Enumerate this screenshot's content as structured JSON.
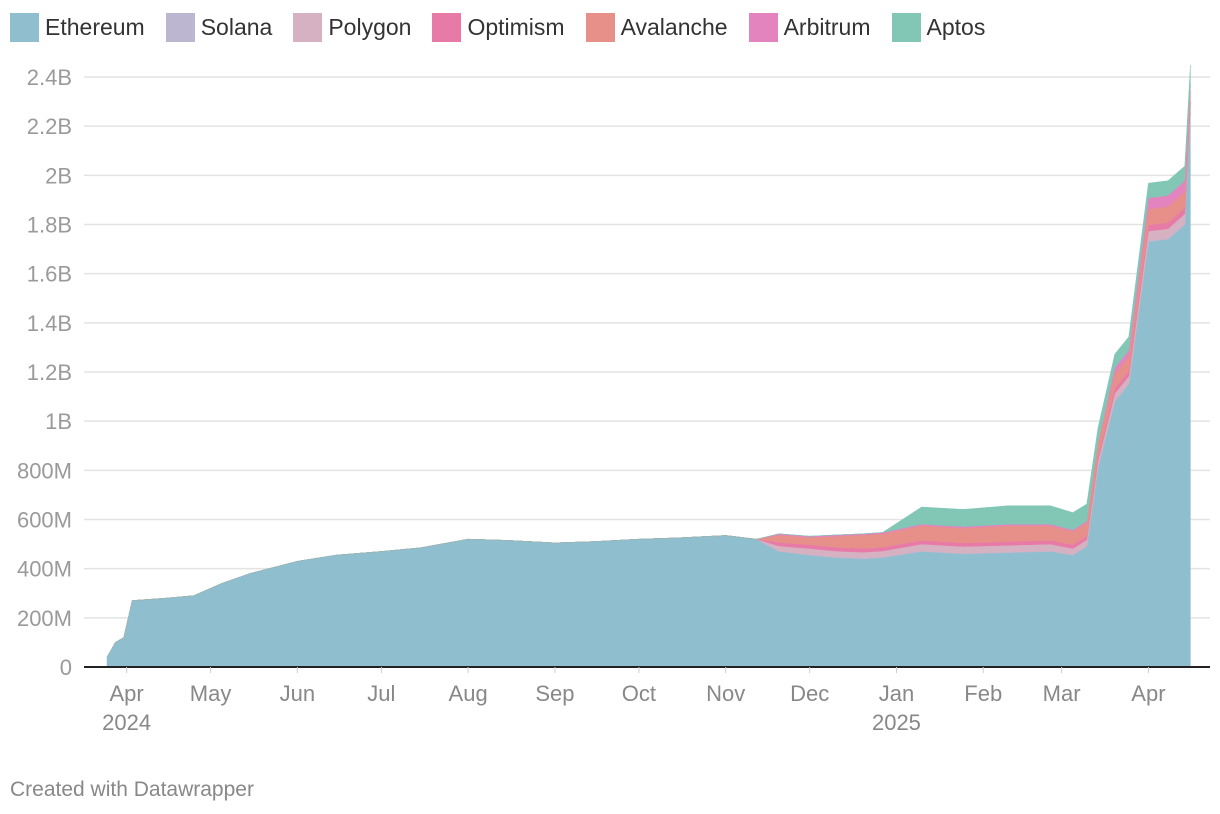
{
  "legend": {
    "items": [
      {
        "label": "Ethereum",
        "color": "#8fbfcf"
      },
      {
        "label": "Solana",
        "color": "#bcb6d0"
      },
      {
        "label": "Polygon",
        "color": "#d6b1c1"
      },
      {
        "label": "Optimism",
        "color": "#e87aa8"
      },
      {
        "label": "Avalanche",
        "color": "#e69089"
      },
      {
        "label": "Arbitrum",
        "color": "#e484be"
      },
      {
        "label": "Aptos",
        "color": "#82c6b6"
      }
    ]
  },
  "footer": {
    "credit": "Created with Datawrapper"
  },
  "chart_data": {
    "type": "area",
    "stacked": true,
    "title": "",
    "xlabel": "",
    "ylabel": "",
    "ylim": [
      0,
      2400000000
    ],
    "xlim": [
      "2024-03-20",
      "2025-04-18"
    ],
    "grid": true,
    "legend_position": "top-left",
    "y_ticks": [
      {
        "value": 0,
        "label": "0"
      },
      {
        "value": 200000000,
        "label": "200M"
      },
      {
        "value": 400000000,
        "label": "400M"
      },
      {
        "value": 600000000,
        "label": "600M"
      },
      {
        "value": 800000000,
        "label": "800M"
      },
      {
        "value": 1000000000,
        "label": "1B"
      },
      {
        "value": 1200000000,
        "label": "1.2B"
      },
      {
        "value": 1400000000,
        "label": "1.4B"
      },
      {
        "value": 1600000000,
        "label": "1.6B"
      },
      {
        "value": 1800000000,
        "label": "1.8B"
      },
      {
        "value": 2000000000,
        "label": "2B"
      },
      {
        "value": 2200000000,
        "label": "2.2B"
      },
      {
        "value": 2400000000,
        "label": "2.4B"
      }
    ],
    "x_ticks": [
      {
        "date": "2024-04-01",
        "label": "Apr",
        "year": "2024"
      },
      {
        "date": "2024-05-01",
        "label": "May",
        "year": ""
      },
      {
        "date": "2024-06-01",
        "label": "Jun",
        "year": ""
      },
      {
        "date": "2024-07-01",
        "label": "Jul",
        "year": ""
      },
      {
        "date": "2024-08-01",
        "label": "Aug",
        "year": ""
      },
      {
        "date": "2024-09-01",
        "label": "Sep",
        "year": ""
      },
      {
        "date": "2024-10-01",
        "label": "Oct",
        "year": ""
      },
      {
        "date": "2024-11-01",
        "label": "Nov",
        "year": ""
      },
      {
        "date": "2024-12-01",
        "label": "Dec",
        "year": ""
      },
      {
        "date": "2025-01-01",
        "label": "Jan",
        "year": "2025"
      },
      {
        "date": "2025-02-01",
        "label": "Feb",
        "year": ""
      },
      {
        "date": "2025-03-01",
        "label": "Mar",
        "year": ""
      },
      {
        "date": "2025-04-01",
        "label": "Apr",
        "year": ""
      }
    ],
    "x": [
      "2024-03-25",
      "2024-03-28",
      "2024-03-31",
      "2024-04-03",
      "2024-04-15",
      "2024-04-25",
      "2024-05-05",
      "2024-05-15",
      "2024-06-01",
      "2024-06-15",
      "2024-07-01",
      "2024-07-15",
      "2024-08-01",
      "2024-08-15",
      "2024-09-01",
      "2024-09-15",
      "2024-10-01",
      "2024-10-15",
      "2024-11-01",
      "2024-11-12",
      "2024-11-20",
      "2024-12-01",
      "2024-12-10",
      "2024-12-20",
      "2024-12-27",
      "2025-01-10",
      "2025-01-25",
      "2025-02-10",
      "2025-02-25",
      "2025-03-05",
      "2025-03-10",
      "2025-03-14",
      "2025-03-20",
      "2025-03-25",
      "2025-04-01",
      "2025-04-08",
      "2025-04-14",
      "2025-04-16"
    ],
    "series": [
      {
        "name": "Ethereum",
        "color": "#8fbfcf",
        "values": [
          40000000,
          100000000,
          120000000,
          270000000,
          280000000,
          290000000,
          340000000,
          380000000,
          430000000,
          455000000,
          470000000,
          485000000,
          520000000,
          515000000,
          505000000,
          510000000,
          520000000,
          525000000,
          535000000,
          520000000,
          470000000,
          455000000,
          445000000,
          440000000,
          445000000,
          470000000,
          460000000,
          465000000,
          470000000,
          455000000,
          490000000,
          810000000,
          1080000000,
          1150000000,
          1730000000,
          1740000000,
          1800000000,
          2250000000
        ]
      },
      {
        "name": "Solana",
        "color": "#bcb6d0",
        "values": [
          0,
          0,
          0,
          0,
          0,
          0,
          0,
          0,
          0,
          0,
          0,
          0,
          0,
          0,
          0,
          0,
          0,
          0,
          0,
          0,
          2000000,
          2000000,
          2000000,
          2000000,
          2000000,
          2000000,
          2000000,
          2000000,
          2000000,
          2000000,
          2000000,
          2000000,
          3000000,
          3000000,
          3000000,
          3000000,
          3000000,
          3000000
        ]
      },
      {
        "name": "Polygon",
        "color": "#d6b1c1",
        "values": [
          0,
          0,
          0,
          0,
          0,
          0,
          0,
          0,
          0,
          0,
          0,
          0,
          0,
          0,
          0,
          0,
          0,
          0,
          0,
          0,
          20000000,
          25000000,
          25000000,
          25000000,
          25000000,
          28000000,
          28000000,
          28000000,
          28000000,
          25000000,
          25000000,
          25000000,
          30000000,
          30000000,
          40000000,
          40000000,
          40000000,
          30000000
        ]
      },
      {
        "name": "Optimism",
        "color": "#e87aa8",
        "values": [
          0,
          0,
          0,
          0,
          0,
          0,
          0,
          0,
          0,
          0,
          0,
          0,
          0,
          0,
          0,
          0,
          0,
          0,
          0,
          0,
          15000000,
          15000000,
          15000000,
          15000000,
          15000000,
          15000000,
          15000000,
          15000000,
          15000000,
          15000000,
          15000000,
          15000000,
          20000000,
          20000000,
          25000000,
          25000000,
          25000000,
          15000000
        ]
      },
      {
        "name": "Avalanche",
        "color": "#e69089",
        "values": [
          0,
          0,
          0,
          0,
          0,
          0,
          0,
          0,
          0,
          0,
          0,
          0,
          0,
          0,
          0,
          0,
          0,
          0,
          0,
          0,
          30000000,
          30000000,
          45000000,
          55000000,
          55000000,
          60000000,
          60000000,
          65000000,
          60000000,
          55000000,
          55000000,
          55000000,
          60000000,
          60000000,
          65000000,
          65000000,
          65000000,
          40000000
        ]
      },
      {
        "name": "Arbitrum",
        "color": "#e484be",
        "values": [
          0,
          0,
          0,
          0,
          0,
          0,
          0,
          0,
          0,
          0,
          0,
          0,
          0,
          0,
          0,
          0,
          0,
          0,
          0,
          0,
          5000000,
          5000000,
          5000000,
          5000000,
          5000000,
          6000000,
          6000000,
          6000000,
          6000000,
          6000000,
          6000000,
          6000000,
          25000000,
          25000000,
          45000000,
          45000000,
          45000000,
          30000000
        ]
      },
      {
        "name": "Aptos",
        "color": "#82c6b6",
        "values": [
          0,
          0,
          0,
          0,
          0,
          0,
          0,
          0,
          0,
          0,
          0,
          0,
          0,
          0,
          0,
          0,
          0,
          0,
          0,
          0,
          0,
          0,
          0,
          0,
          0,
          70000000,
          70000000,
          75000000,
          75000000,
          70000000,
          70000000,
          60000000,
          55000000,
          55000000,
          60000000,
          60000000,
          60000000,
          80000000
        ]
      }
    ]
  }
}
